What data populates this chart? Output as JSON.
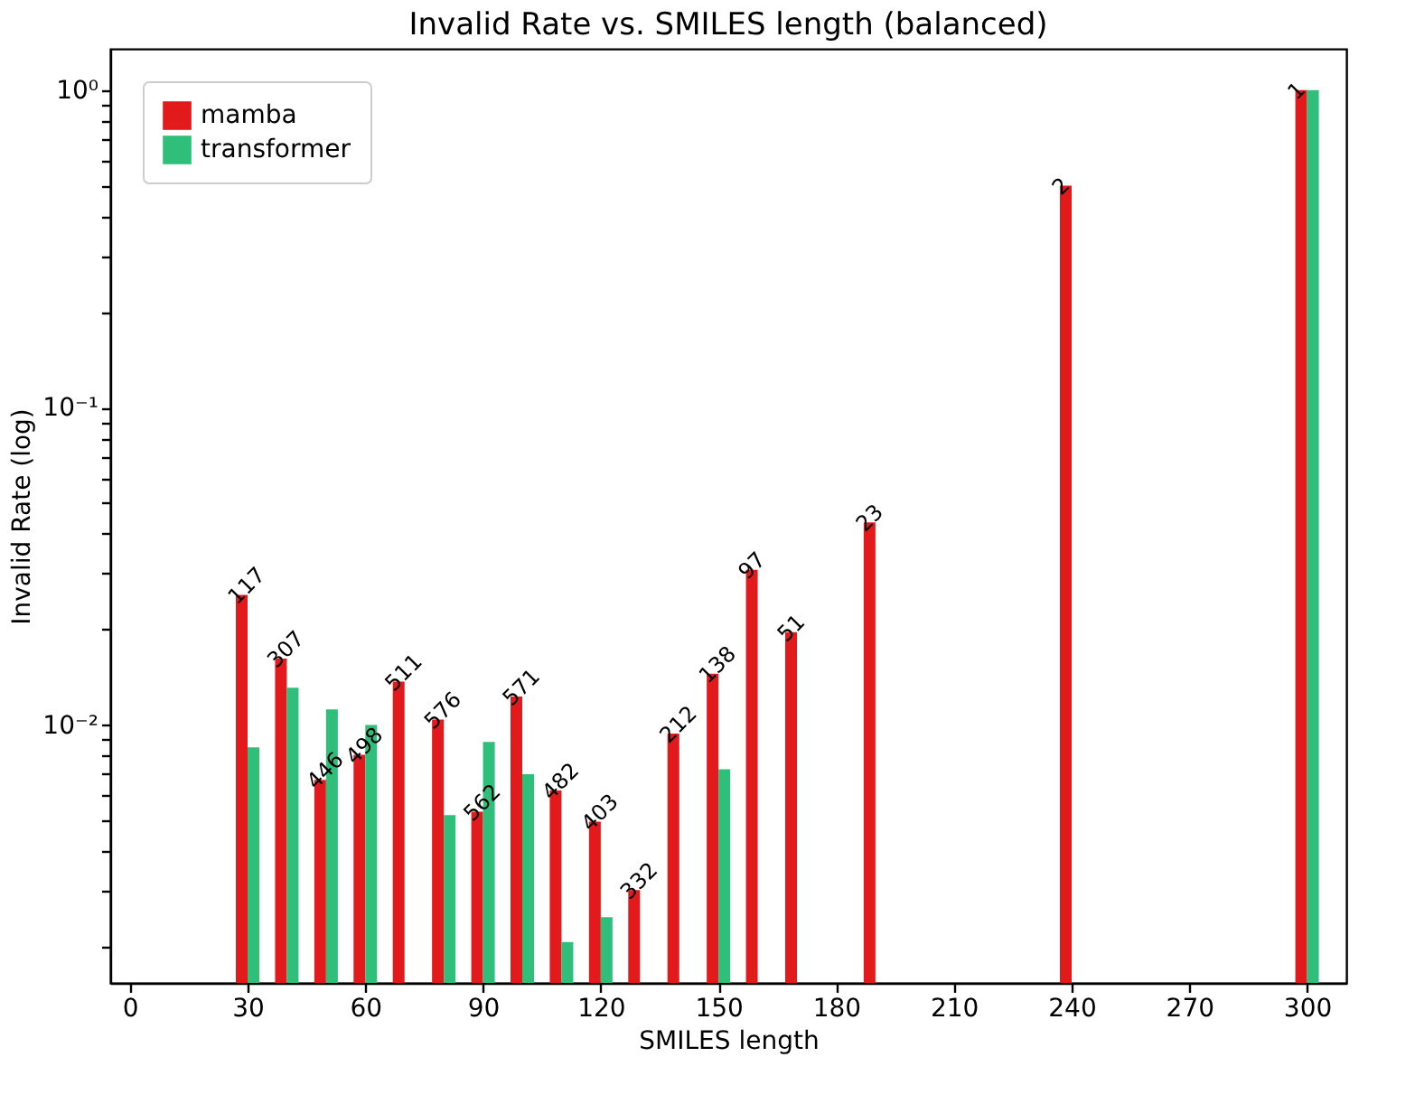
{
  "chart_data": {
    "type": "bar",
    "title": "Invalid Rate vs. SMILES length (balanced)",
    "xlabel": "SMILES length",
    "ylabel": "Invalid Rate (log)",
    "x": [
      30,
      40,
      50,
      60,
      70,
      80,
      90,
      100,
      110,
      120,
      130,
      140,
      150,
      160,
      170,
      190,
      240,
      300
    ],
    "series": [
      {
        "name": "mamba",
        "color": "#e31a1c",
        "values": [
          0.0257,
          0.0162,
          0.00672,
          0.00805,
          0.0137,
          0.0104,
          0.00533,
          0.0123,
          0.00622,
          0.00496,
          0.00302,
          0.0094,
          0.0145,
          0.0308,
          0.0196,
          0.0435,
          0.5,
          1
        ]
      },
      {
        "name": "transformer",
        "color": "#2fbf7b",
        "values": [
          0.0085,
          0.0131,
          0.0112,
          0.01,
          null,
          0.0052,
          0.00885,
          0.007,
          0.00207,
          0.00248,
          null,
          null,
          0.00726,
          null,
          null,
          null,
          null,
          1
        ]
      }
    ],
    "annotations": [
      {
        "text": "117",
        "x": 30,
        "y": 0.0257
      },
      {
        "text": "307",
        "x": 40,
        "y": 0.0162
      },
      {
        "text": "446",
        "x": 50,
        "y": 0.00672
      },
      {
        "text": "498",
        "x": 60,
        "y": 0.00805
      },
      {
        "text": "511",
        "x": 70,
        "y": 0.0137
      },
      {
        "text": "576",
        "x": 80,
        "y": 0.0104
      },
      {
        "text": "562",
        "x": 90,
        "y": 0.00533
      },
      {
        "text": "571",
        "x": 100,
        "y": 0.0123
      },
      {
        "text": "482",
        "x": 110,
        "y": 0.00622
      },
      {
        "text": "403",
        "x": 120,
        "y": 0.00496
      },
      {
        "text": "332",
        "x": 130,
        "y": 0.00302
      },
      {
        "text": "212",
        "x": 140,
        "y": 0.0094
      },
      {
        "text": "138",
        "x": 150,
        "y": 0.0145
      },
      {
        "text": "97",
        "x": 160,
        "y": 0.0308
      },
      {
        "text": "51",
        "x": 170,
        "y": 0.0196
      },
      {
        "text": "23",
        "x": 190,
        "y": 0.0435
      },
      {
        "text": "2",
        "x": 240,
        "y": 0.5
      },
      {
        "text": "1",
        "x": 300,
        "y": 1
      }
    ],
    "log": "y",
    "grid": false,
    "legend": "top left",
    "xlim": [
      -5,
      310
    ],
    "xticks": [
      0,
      30,
      60,
      90,
      120,
      150,
      180,
      210,
      240,
      270,
      300
    ],
    "ylim": [
      0.00154,
      1.35
    ],
    "yticks": [
      {
        "value": 0.002,
        "label": null
      },
      {
        "value": 0.003,
        "label": null
      },
      {
        "value": 0.004,
        "label": null
      },
      {
        "value": 0.005,
        "label": null
      },
      {
        "value": 0.006,
        "label": null
      },
      {
        "value": 0.007,
        "label": null
      },
      {
        "value": 0.008,
        "label": null
      },
      {
        "value": 0.009,
        "label": null
      },
      {
        "value": 0.01,
        "label": "10⁻²"
      },
      {
        "value": 0.02,
        "label": null
      },
      {
        "value": 0.03,
        "label": null
      },
      {
        "value": 0.04,
        "label": null
      },
      {
        "value": 0.05,
        "label": null
      },
      {
        "value": 0.06,
        "label": null
      },
      {
        "value": 0.07,
        "label": null
      },
      {
        "value": 0.08,
        "label": null
      },
      {
        "value": 0.09,
        "label": null
      },
      {
        "value": 0.1,
        "label": "10⁻¹"
      },
      {
        "value": 0.2,
        "label": null
      },
      {
        "value": 0.3,
        "label": null
      },
      {
        "value": 0.4,
        "label": null
      },
      {
        "value": 0.5,
        "label": null
      },
      {
        "value": 0.6,
        "label": null
      },
      {
        "value": 0.7,
        "label": null
      },
      {
        "value": 0.8,
        "label": null
      },
      {
        "value": 0.9,
        "label": null
      },
      {
        "value": 1,
        "label": "10⁰"
      }
    ]
  }
}
